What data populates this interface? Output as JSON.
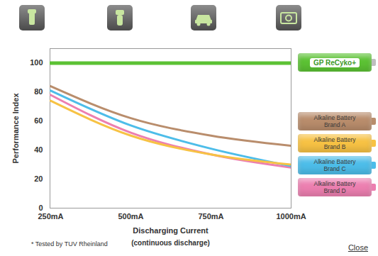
{
  "chart_data": {
    "type": "line",
    "y_label": "Performance Index",
    "x_label": "Discharging Current",
    "x_sublabel": "(continuous discharge)",
    "footnote": "* Tested by TUV Rheinland",
    "close_label": "Close",
    "categories": [
      "250mA",
      "500mA",
      "750mA",
      "1000mA"
    ],
    "series": [
      {
        "name": "GP ReCyko+",
        "color": "#5cc234",
        "values": [
          100,
          100,
          100,
          100
        ]
      },
      {
        "name": "Alkaline Battery Brand A",
        "color": "#b98d6c",
        "values": [
          84,
          62,
          50,
          43
        ]
      },
      {
        "name": "Alkaline Battery Brand B",
        "color": "#f7c244",
        "values": [
          74,
          50,
          37,
          30
        ]
      },
      {
        "name": "Alkaline Battery Brand C",
        "color": "#4dbde9",
        "values": [
          81,
          57,
          41,
          29
        ]
      },
      {
        "name": "Alkaline Battery Brand D",
        "color": "#ec7fb0",
        "values": [
          78,
          52,
          37,
          28
        ]
      }
    ],
    "ylim": [
      0,
      110
    ],
    "yticks": [
      0,
      20,
      40,
      60,
      80,
      100
    ],
    "grid": false,
    "legend": "right"
  }
}
